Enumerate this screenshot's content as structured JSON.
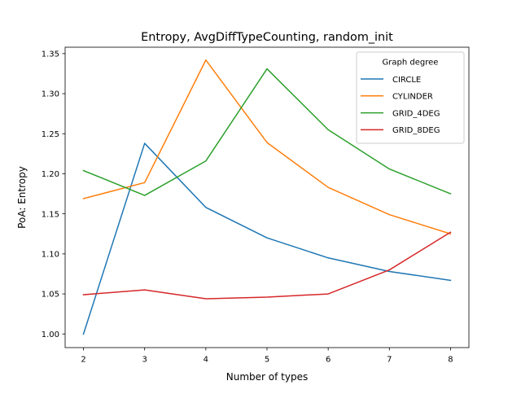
{
  "chart_data": {
    "type": "line",
    "title": "Entropy, AvgDiffTypeCounting, random_init",
    "xlabel": "Number of types",
    "ylabel": "PoA: Entropy",
    "x": [
      2,
      3,
      4,
      5,
      6,
      7,
      8
    ],
    "xlim": [
      1.7,
      8.3
    ],
    "ylim": [
      0.983,
      1.358
    ],
    "xticks": [
      2,
      3,
      4,
      5,
      6,
      7,
      8
    ],
    "yticks": [
      1.0,
      1.05,
      1.1,
      1.15,
      1.2,
      1.25,
      1.3,
      1.35
    ],
    "ytick_labels": [
      "1.00",
      "1.05",
      "1.10",
      "1.15",
      "1.20",
      "1.25",
      "1.30",
      "1.35"
    ],
    "grid": false,
    "legend": {
      "title": "Graph degree",
      "position": "top-right"
    },
    "series": [
      {
        "name": "CIRCLE",
        "color": "#1f77b4",
        "values": [
          1.0,
          1.238,
          1.158,
          1.12,
          1.095,
          1.078,
          1.067
        ]
      },
      {
        "name": "CYLINDER",
        "color": "#ff7f0e",
        "values": [
          1.169,
          1.189,
          1.342,
          1.239,
          1.183,
          1.149,
          1.125
        ]
      },
      {
        "name": "GRID_4DEG",
        "color": "#2ca02c",
        "values": [
          1.204,
          1.173,
          1.216,
          1.331,
          1.255,
          1.206,
          1.175
        ]
      },
      {
        "name": "GRID_8DEG",
        "color": "#d62728",
        "values": [
          1.049,
          1.055,
          1.044,
          1.046,
          1.05,
          1.08,
          1.127
        ]
      }
    ]
  }
}
